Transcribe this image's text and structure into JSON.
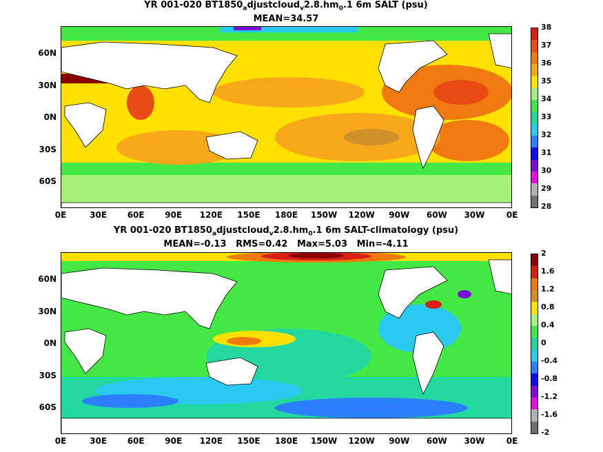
{
  "top": {
    "title_pre": "YR 001-020 BT1850",
    "title_sub1": "a",
    "title_mid": "djustcloud",
    "title_sub2": "v",
    "title_mid2": "2.8.hm",
    "title_sub3": "0",
    "title_post": ".1 6m SALT (psu)",
    "stats": "MEAN=34.57",
    "colorbar_labels": [
      "38",
      "37",
      "36",
      "35",
      "34",
      "33",
      "32",
      "31",
      "30",
      "29",
      "28"
    ],
    "colorbar_colors": [
      "#d62018",
      "#e84c14",
      "#f07a10",
      "#f7a81a",
      "#ffe000",
      "#a6f07a",
      "#44e844",
      "#22d8a0",
      "#2bc8f0",
      "#2a80ff",
      "#1010e6",
      "#7a10d8",
      "#e010e0",
      "#b0b0b0",
      "#707070"
    ]
  },
  "bottom": {
    "title_pre": "YR 001-020 BT1850",
    "title_sub1": "a",
    "title_mid": "djustcloud",
    "title_sub2": "v",
    "title_mid2": "2.8.hm",
    "title_sub3": "0",
    "title_post": ".1 6m SALT-climatology (psu)",
    "stats": "MEAN=-0.13   RMS=0.42   Max=5.03   Min=-4.11",
    "colorbar_labels": [
      "2",
      "1.6",
      "1.2",
      "0.8",
      "0.4",
      "0",
      "-0.4",
      "-0.8",
      "-1.2",
      "-1.6",
      "-2"
    ],
    "colorbar_colors": [
      "#8a0000",
      "#d62018",
      "#f07a10",
      "#d0902a",
      "#ffe000",
      "#a6f07a",
      "#44e844",
      "#22d8a0",
      "#2bc8f0",
      "#2a80ff",
      "#1010e6",
      "#7a10d8",
      "#e010e0",
      "#b0b0b0",
      "#707070"
    ]
  },
  "axes": {
    "lat_labels": [
      "60N",
      "30N",
      "0N",
      "30S",
      "60S"
    ],
    "lon_labels": [
      "0E",
      "30E",
      "60E",
      "90E",
      "120E",
      "150E",
      "180E",
      "150W",
      "120W",
      "90W",
      "60W",
      "30W",
      "0E"
    ]
  }
}
